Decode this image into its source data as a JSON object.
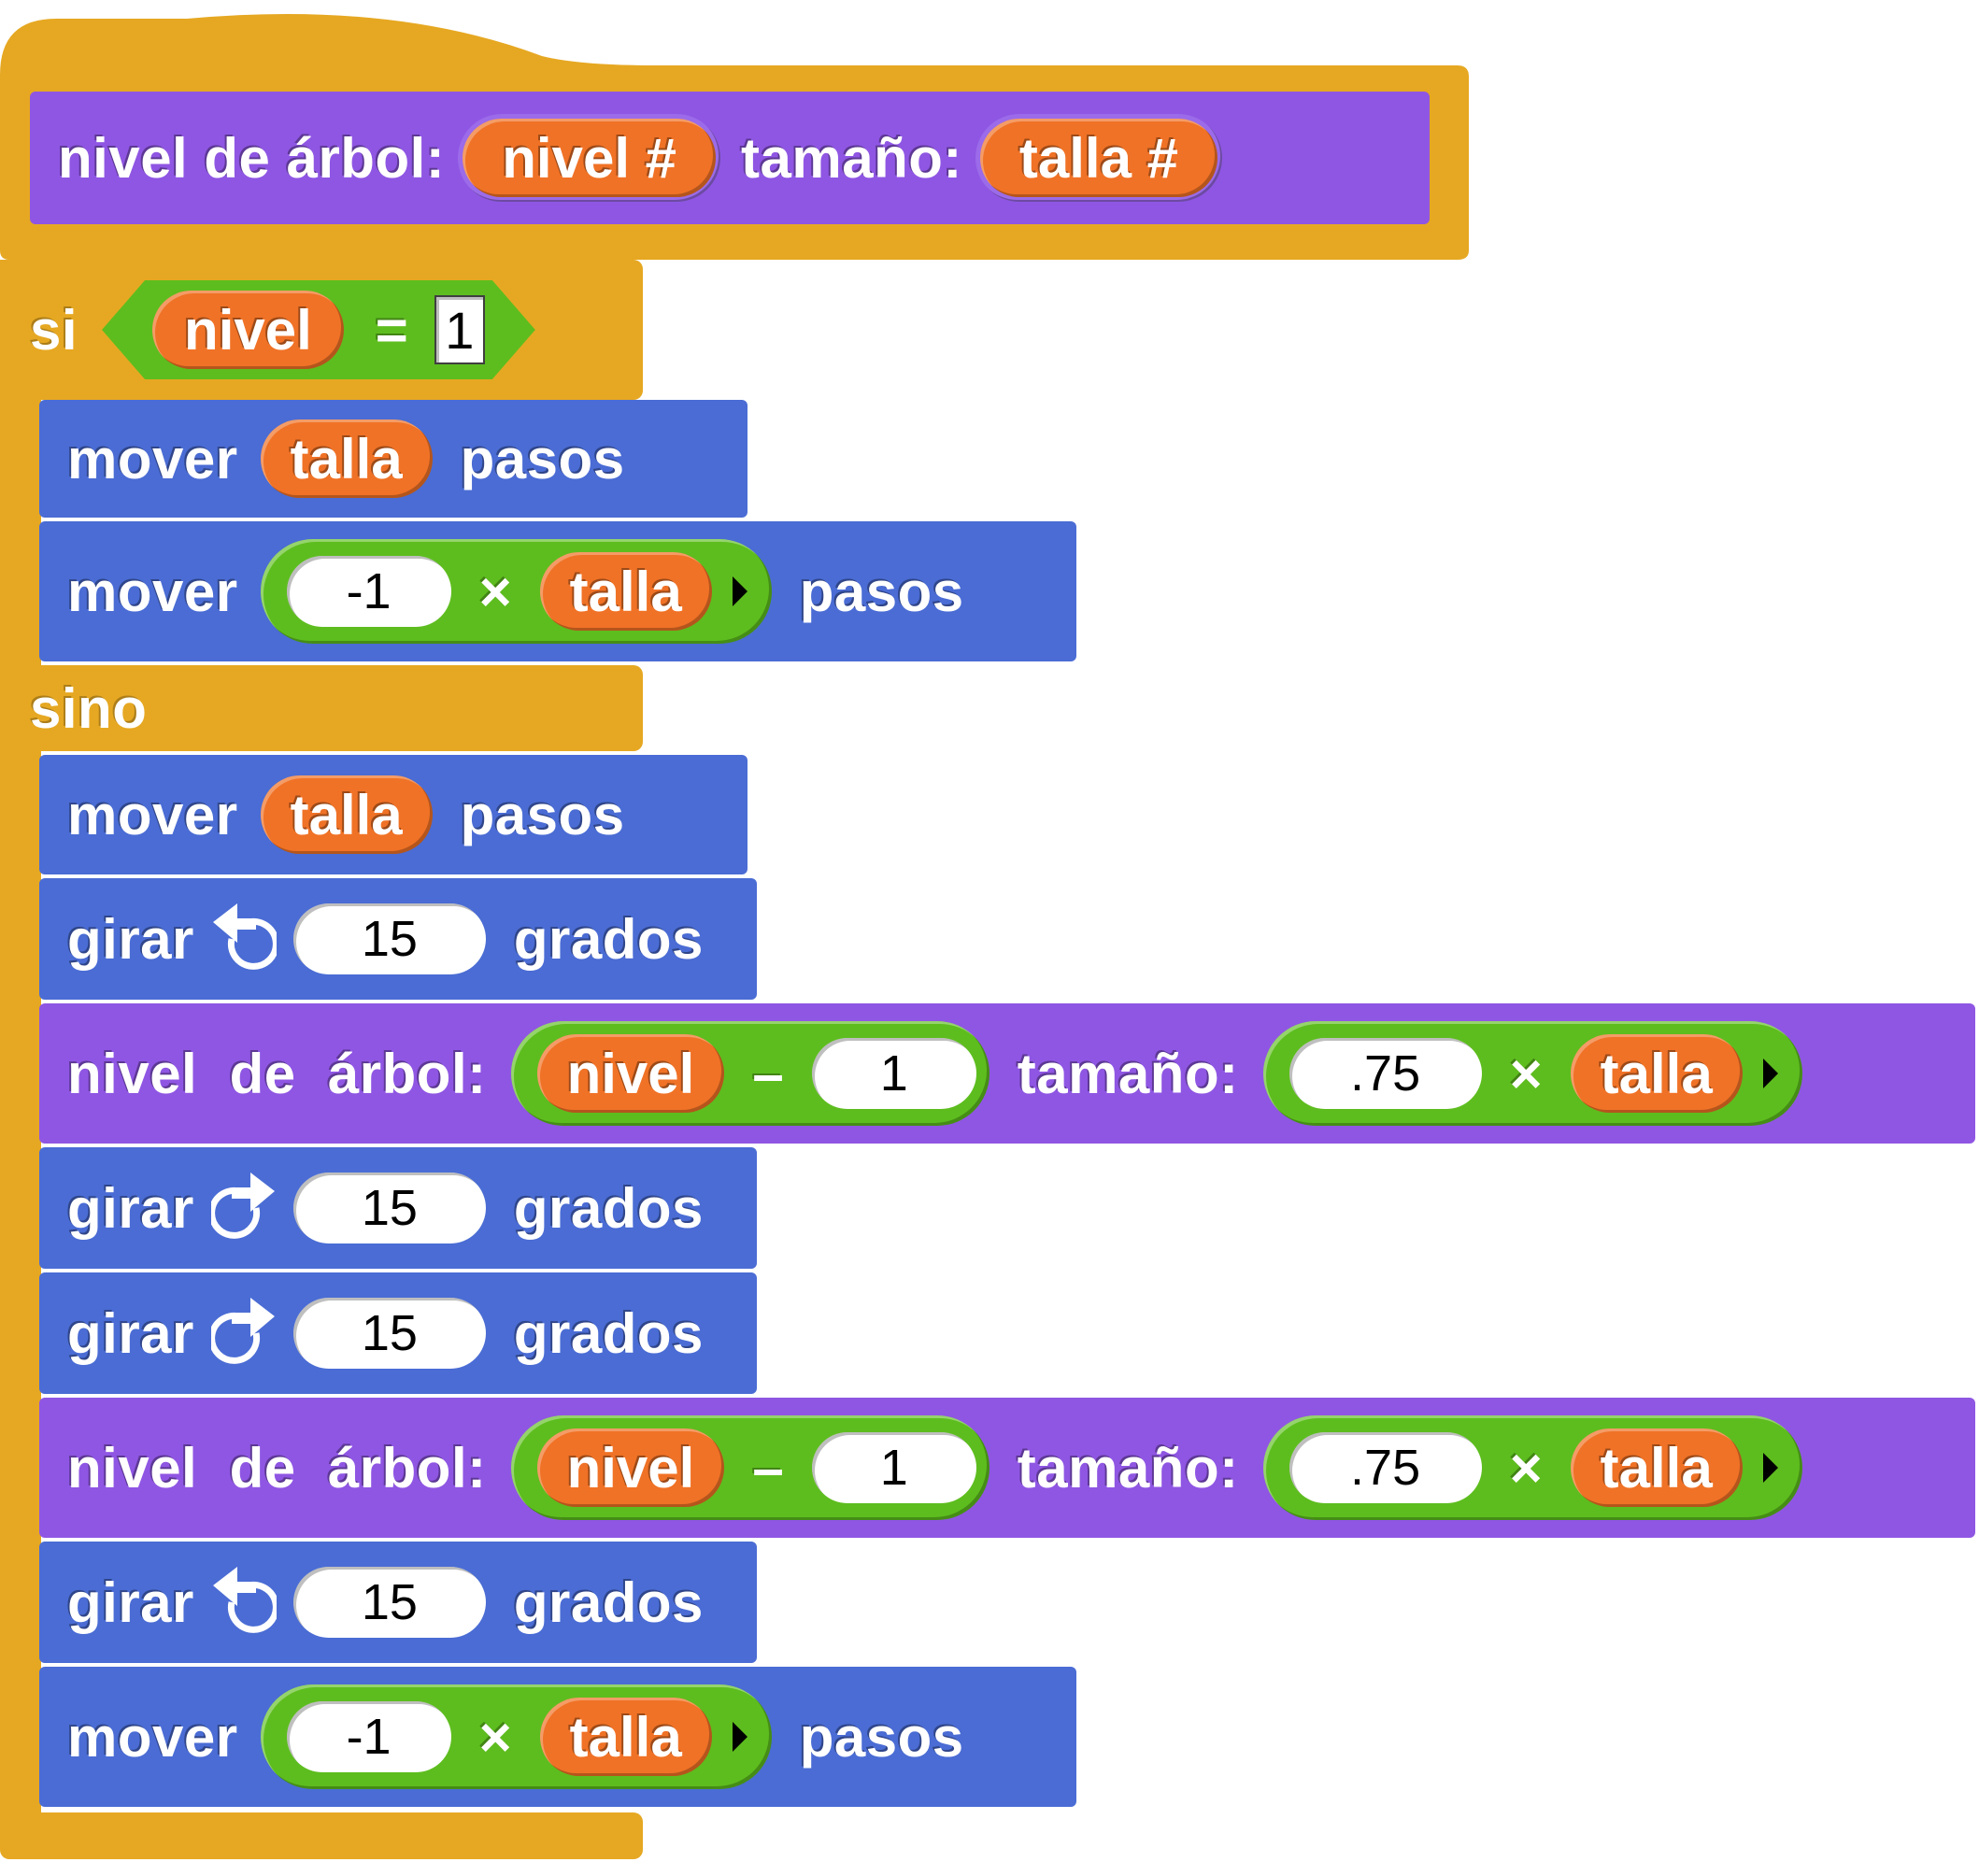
{
  "colors": {
    "control": "#e6a822",
    "motion": "#4a6cd4",
    "custom_block": "#8f56e3",
    "variable": "#f07226",
    "operator": "#5dbd1e"
  },
  "hat": {
    "label_name": "nivel de árbol:",
    "param1": "nivel #",
    "label_size": "tamaño:",
    "param2": "talla #"
  },
  "if_block": {
    "keyword_if": "si",
    "cond_var": "nivel",
    "cond_op": "=",
    "cond_value": "1",
    "keyword_else": "sino"
  },
  "then_blocks": [
    {
      "word": "mover",
      "var": "talla",
      "unit": "pasos"
    },
    {
      "word": "mover",
      "num": "-1",
      "op": "×",
      "var": "talla",
      "unit": "pasos"
    }
  ],
  "else_blocks": [
    {
      "word": "mover",
      "var": "talla",
      "unit": "pasos"
    },
    {
      "word": "girar",
      "icon": "turn-left-icon",
      "num": "15",
      "unit": "grados"
    },
    {
      "word": "nivel  de  árbol:",
      "var": "nivel",
      "op": "–",
      "num": "1",
      "size_word": "tamaño:",
      "num2": ".75",
      "op2": "×",
      "var2": "talla"
    },
    {
      "word": "girar",
      "icon": "turn-right-icon",
      "num": "15",
      "unit": "grados"
    },
    {
      "word": "girar",
      "icon": "turn-right-icon",
      "num": "15",
      "unit": "grados"
    },
    {
      "word": "nivel  de  árbol:",
      "var": "nivel",
      "op": "–",
      "num": "1",
      "size_word": "tamaño:",
      "num2": ".75",
      "op2": "×",
      "var2": "talla"
    },
    {
      "word": "girar",
      "icon": "turn-left-icon",
      "num": "15",
      "unit": "grados"
    },
    {
      "word": "mover",
      "num": "-1",
      "op": "×",
      "var": "talla",
      "unit": "pasos"
    }
  ]
}
